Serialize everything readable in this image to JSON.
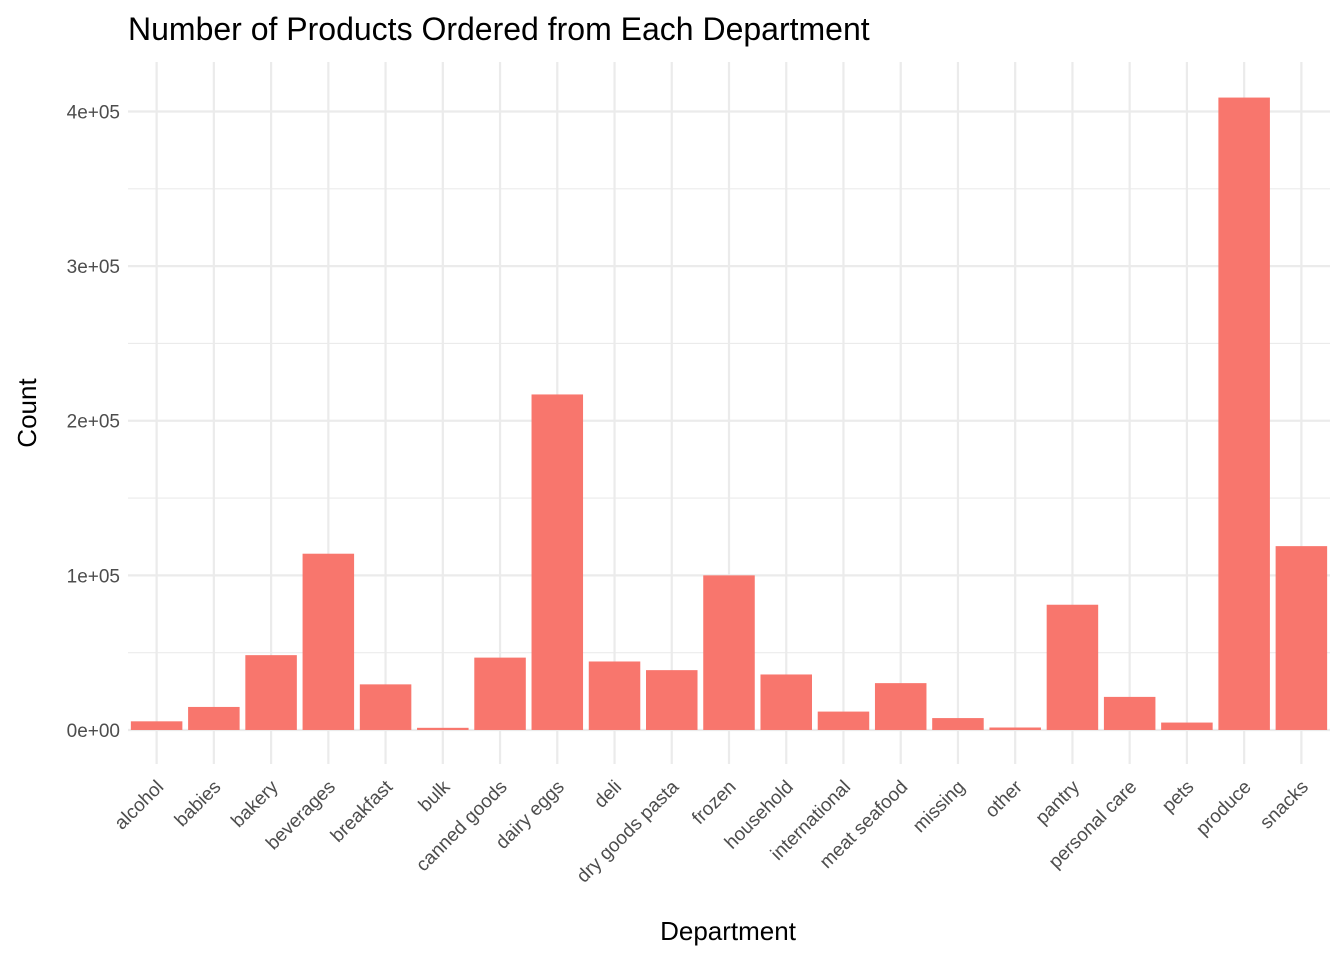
{
  "chart_data": {
    "type": "bar",
    "title": "Number of Products Ordered from Each Department",
    "xlabel": "Department",
    "ylabel": "Count",
    "categories": [
      "alcohol",
      "babies",
      "bakery",
      "beverages",
      "breakfast",
      "bulk",
      "canned goods",
      "dairy eggs",
      "deli",
      "dry goods pasta",
      "frozen",
      "household",
      "international",
      "meat seafood",
      "missing",
      "other",
      "pantry",
      "personal care",
      "pets",
      "produce",
      "snacks"
    ],
    "values": [
      5600,
      14900,
      48400,
      114000,
      29500,
      1400,
      46800,
      217000,
      44300,
      38700,
      100000,
      35900,
      11900,
      30300,
      7700,
      1600,
      81000,
      21400,
      4800,
      409000,
      118900
    ],
    "ylim": [
      -22000,
      432000
    ],
    "yticks": [
      0,
      100000,
      200000,
      300000,
      400000
    ],
    "ytick_labels": [
      "0e+00",
      "1e+05",
      "2e+05",
      "3e+05",
      "4e+05"
    ],
    "grid": true,
    "bar_color": "#F8766D",
    "background": "#FFFFFF",
    "grid_color": "#EBEBEB"
  }
}
